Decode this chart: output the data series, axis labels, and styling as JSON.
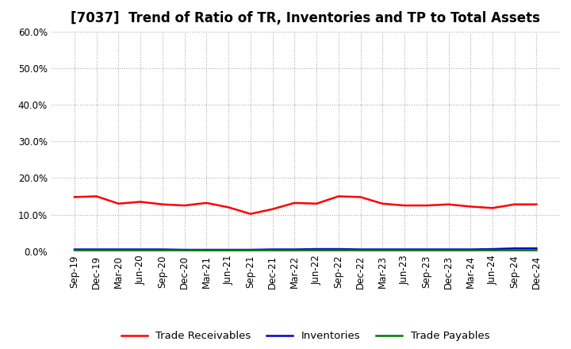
{
  "title": "[7037]  Trend of Ratio of TR, Inventories and TP to Total Assets",
  "x_labels": [
    "Sep-19",
    "Dec-19",
    "Mar-20",
    "Jun-20",
    "Sep-20",
    "Dec-20",
    "Mar-21",
    "Jun-21",
    "Sep-21",
    "Dec-21",
    "Mar-22",
    "Jun-22",
    "Sep-22",
    "Dec-22",
    "Mar-23",
    "Jun-23",
    "Sep-23",
    "Dec-23",
    "Mar-24",
    "Jun-24",
    "Sep-24",
    "Dec-24"
  ],
  "trade_receivables": [
    0.148,
    0.15,
    0.13,
    0.135,
    0.128,
    0.125,
    0.132,
    0.12,
    0.102,
    0.115,
    0.132,
    0.13,
    0.15,
    0.148,
    0.13,
    0.125,
    0.125,
    0.128,
    0.122,
    0.118,
    0.128,
    0.128
  ],
  "inventories": [
    0.005,
    0.005,
    0.005,
    0.005,
    0.005,
    0.004,
    0.004,
    0.004,
    0.004,
    0.005,
    0.005,
    0.006,
    0.006,
    0.005,
    0.005,
    0.005,
    0.005,
    0.005,
    0.005,
    0.006,
    0.008,
    0.008
  ],
  "trade_payables": [
    0.003,
    0.003,
    0.003,
    0.003,
    0.003,
    0.003,
    0.003,
    0.003,
    0.003,
    0.003,
    0.003,
    0.003,
    0.003,
    0.003,
    0.003,
    0.003,
    0.003,
    0.003,
    0.003,
    0.003,
    0.003,
    0.003
  ],
  "tr_color": "#FF0000",
  "inv_color": "#0000CC",
  "tp_color": "#007700",
  "ylim": [
    0.0,
    0.6
  ],
  "yticks": [
    0.0,
    0.1,
    0.2,
    0.3,
    0.4,
    0.5,
    0.6
  ],
  "background_color": "#FFFFFF",
  "grid_color": "#AAAAAA",
  "title_fontsize": 12,
  "tick_fontsize": 8.5,
  "legend_fontsize": 9.5
}
